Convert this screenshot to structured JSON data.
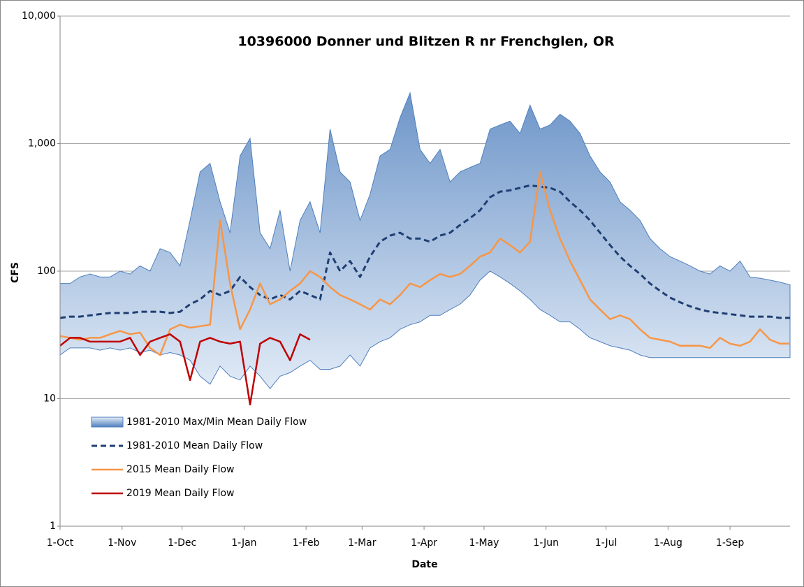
{
  "chart_data": {
    "type": "line",
    "title": "10396000  Donner und Blitzen R nr Frenchglen, OR",
    "xlabel": "Date",
    "ylabel": "CFS",
    "log_y": true,
    "grid": true,
    "xlim": [
      0,
      365
    ],
    "xticks": [
      {
        "value": 0,
        "label": "1-Oct"
      },
      {
        "value": 31,
        "label": "1-Nov"
      },
      {
        "value": 61,
        "label": "1-Dec"
      },
      {
        "value": 92,
        "label": "1-Jan"
      },
      {
        "value": 123,
        "label": "1-Feb"
      },
      {
        "value": 151,
        "label": "1-Mar"
      },
      {
        "value": 182,
        "label": "1-Apr"
      },
      {
        "value": 212,
        "label": "1-May"
      },
      {
        "value": 243,
        "label": "1-Jun"
      },
      {
        "value": 273,
        "label": "1-Jul"
      },
      {
        "value": 304,
        "label": "1-Aug"
      },
      {
        "value": 335,
        "label": "1-Sep"
      }
    ],
    "ylim": [
      1,
      10000
    ],
    "yticks": [
      1,
      10,
      100,
      {
        "value": 1000,
        "label": "1,000"
      },
      {
        "value": 10000,
        "label": "10,000"
      }
    ],
    "x": [
      0,
      5,
      10,
      15,
      20,
      25,
      30,
      35,
      40,
      45,
      50,
      55,
      60,
      65,
      70,
      75,
      80,
      85,
      90,
      95,
      100,
      105,
      110,
      115,
      120,
      125,
      130,
      135,
      140,
      145,
      150,
      155,
      160,
      165,
      170,
      175,
      180,
      185,
      190,
      195,
      200,
      205,
      210,
      215,
      220,
      225,
      230,
      235,
      240,
      245,
      250,
      255,
      260,
      265,
      270,
      275,
      280,
      285,
      290,
      295,
      300,
      305,
      310,
      315,
      320,
      325,
      330,
      335,
      340,
      345,
      350,
      355,
      360,
      365
    ],
    "series": [
      {
        "name": "1981-2010 Max/Min Mean Daily Flow",
        "kind": "band",
        "color": "#4f7fbd",
        "color_low": "#e3ecf7",
        "high": [
          80,
          80,
          90,
          95,
          90,
          90,
          100,
          95,
          110,
          100,
          150,
          140,
          110,
          250,
          600,
          700,
          350,
          200,
          800,
          1100,
          200,
          150,
          300,
          100,
          250,
          350,
          200,
          1300,
          600,
          500,
          250,
          400,
          800,
          900,
          1600,
          2500,
          900,
          700,
          900,
          500,
          600,
          650,
          700,
          1300,
          1400,
          1500,
          1200,
          2000,
          1300,
          1400,
          1700,
          1500,
          1200,
          800,
          600,
          500,
          350,
          300,
          250,
          180,
          150,
          130,
          120,
          110,
          100,
          95,
          110,
          100,
          120,
          90,
          88,
          85,
          82,
          78
        ],
        "low": [
          22,
          25,
          25,
          25,
          24,
          25,
          24,
          25,
          23,
          24,
          22,
          23,
          22,
          20,
          15,
          13,
          18,
          15,
          14,
          18,
          15,
          12,
          15,
          16,
          18,
          20,
          17,
          17,
          18,
          22,
          18,
          25,
          28,
          30,
          35,
          38,
          40,
          45,
          45,
          50,
          55,
          65,
          85,
          100,
          90,
          80,
          70,
          60,
          50,
          45,
          40,
          40,
          35,
          30,
          28,
          26,
          25,
          24,
          22,
          21,
          21,
          21,
          21,
          21,
          21,
          21,
          21,
          21,
          21,
          21,
          21,
          21,
          21,
          21
        ]
      },
      {
        "name": "1981-2010 Mean Daily Flow",
        "kind": "line",
        "dash": true,
        "color": "#1f3f73",
        "values": [
          43,
          44,
          44,
          45,
          46,
          47,
          47,
          47,
          48,
          48,
          48,
          47,
          48,
          55,
          60,
          70,
          65,
          70,
          90,
          75,
          65,
          60,
          65,
          60,
          70,
          65,
          60,
          140,
          100,
          120,
          90,
          130,
          170,
          190,
          200,
          180,
          180,
          170,
          190,
          200,
          230,
          260,
          300,
          380,
          420,
          430,
          450,
          470,
          460,
          450,
          420,
          350,
          300,
          250,
          200,
          160,
          130,
          110,
          95,
          80,
          70,
          62,
          57,
          53,
          50,
          48,
          47,
          46,
          45,
          44,
          44,
          44,
          43,
          43
        ]
      },
      {
        "name": "2015 Mean Daily Flow",
        "kind": "line",
        "color": "#f79646",
        "values": [
          31,
          30,
          29,
          30,
          30,
          32,
          34,
          32,
          33,
          25,
          22,
          35,
          38,
          36,
          37,
          38,
          250,
          80,
          35,
          50,
          80,
          55,
          60,
          70,
          80,
          100,
          90,
          75,
          65,
          60,
          55,
          50,
          60,
          55,
          65,
          80,
          75,
          85,
          95,
          90,
          95,
          110,
          130,
          140,
          180,
          160,
          140,
          170,
          600,
          300,
          180,
          120,
          85,
          60,
          50,
          42,
          45,
          42,
          35,
          30,
          29,
          28,
          26,
          26,
          26,
          25,
          30,
          27,
          26,
          28,
          35,
          29,
          27,
          27
        ]
      },
      {
        "name": "2019 Mean Daily Flow",
        "kind": "line",
        "color": "#c00000",
        "values": [
          26,
          30,
          30,
          28,
          28,
          28,
          28,
          30,
          22,
          28,
          30,
          32,
          28,
          14,
          28,
          30,
          28,
          27,
          28,
          9,
          27,
          30,
          28,
          20,
          32,
          29,
          null,
          null,
          null,
          null,
          null,
          null,
          null,
          null,
          null,
          null,
          null,
          null,
          null,
          null,
          null,
          null,
          null,
          null,
          null,
          null,
          null,
          null,
          null,
          null,
          null,
          null,
          null,
          null,
          null,
          null,
          null,
          null,
          null,
          null,
          null,
          null,
          null,
          null,
          null,
          null,
          null,
          null,
          null,
          null,
          null,
          null,
          null,
          null
        ]
      }
    ]
  }
}
